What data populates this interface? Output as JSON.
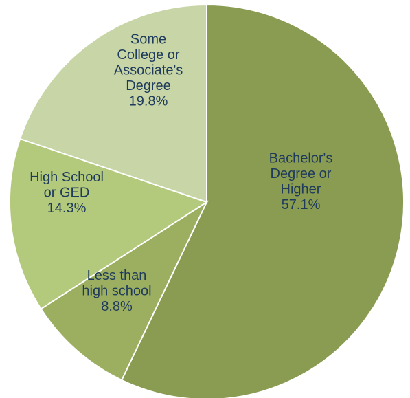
{
  "chart_data": {
    "type": "pie",
    "title": "",
    "slices": [
      {
        "label_lines": [
          "Bachelor's",
          "Degree or",
          "Higher"
        ],
        "percent_text": "57.1%",
        "value": 57.1,
        "color": "#8a9b52"
      },
      {
        "label_lines": [
          "Less than",
          "high school"
        ],
        "percent_text": "8.8%",
        "value": 8.8,
        "color": "#9caf61"
      },
      {
        "label_lines": [
          "High School",
          "or GED"
        ],
        "percent_text": "14.3%",
        "value": 14.3,
        "color": "#b3c97c"
      },
      {
        "label_lines": [
          "Some",
          "College or",
          "Associate's",
          "Degree"
        ],
        "percent_text": "19.8%",
        "value": 19.8,
        "color": "#c8d6a7"
      }
    ],
    "start": "12 o'clock",
    "direction": "clockwise",
    "legend": "none",
    "data_labels": "inside slices"
  }
}
